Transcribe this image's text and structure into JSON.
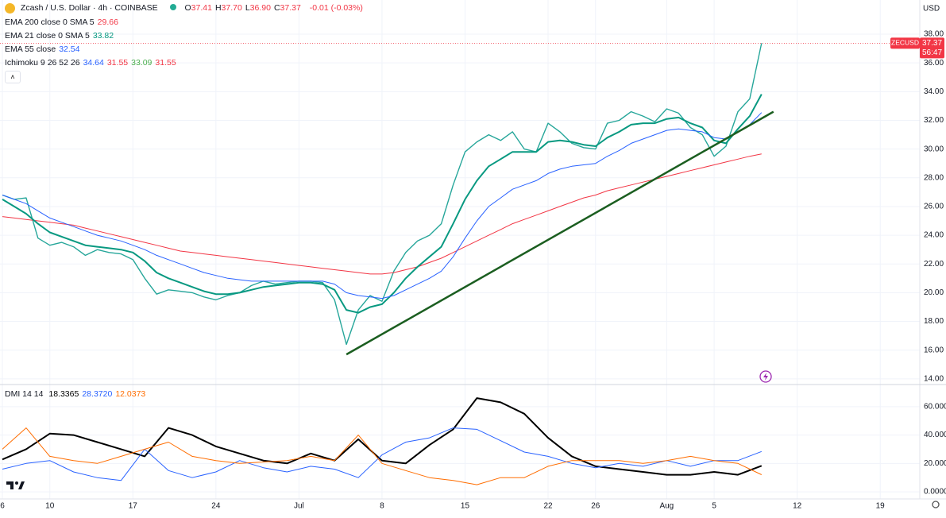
{
  "chart_data": [
    {
      "type": "line",
      "title": "Zcash / U.S. Dollar · 4h · COINBASE",
      "ohlc": [
        {
          "key": "O",
          "value": "37.41"
        },
        {
          "key": "H",
          "value": "37.70"
        },
        {
          "key": "L",
          "value": "36.90"
        },
        {
          "key": "C",
          "value": "37.37"
        }
      ],
      "change": "-0.01 (-0.03%)",
      "currency": "USD",
      "countdown": "56:47",
      "ichimoku": {
        "label": "Ichimoku 9 26 52 26",
        "values": [
          "34.64",
          "31.55",
          "33.09",
          "31.55"
        ],
        "colors": [
          "#2962ff",
          "#f23645",
          "#4caf50",
          "#f23645"
        ]
      },
      "xlim": [
        "06-06",
        "08-22"
      ],
      "xticks": [
        {
          "value": "06-06",
          "label": "6"
        },
        {
          "value": "06-10",
          "label": "10"
        },
        {
          "value": "06-17",
          "label": "17"
        },
        {
          "value": "06-24",
          "label": "24"
        },
        {
          "value": "07-01",
          "label": "Jul"
        },
        {
          "value": "07-08",
          "label": "8"
        },
        {
          "value": "07-15",
          "label": "15"
        },
        {
          "value": "07-22",
          "label": "22"
        },
        {
          "value": "07-26",
          "label": "26"
        },
        {
          "value": "08-01",
          "label": "Aug"
        },
        {
          "value": "08-05",
          "label": "5"
        },
        {
          "value": "08-12",
          "label": "12"
        },
        {
          "value": "08-19",
          "label": "19"
        }
      ],
      "ylim": [
        13.66,
        40.38
      ],
      "yticks": [
        {
          "value": 14,
          "label": "14.00"
        },
        {
          "value": 16,
          "label": "16.00"
        },
        {
          "value": 18,
          "label": "18.00"
        },
        {
          "value": 20,
          "label": "20.00"
        },
        {
          "value": 22,
          "label": "22.00"
        },
        {
          "value": 24,
          "label": "24.00"
        },
        {
          "value": 26,
          "label": "26.00"
        },
        {
          "value": 28,
          "label": "28.00"
        },
        {
          "value": 30,
          "label": "30.00"
        },
        {
          "value": 32,
          "label": "32.00"
        },
        {
          "value": 34,
          "label": "34.00"
        },
        {
          "value": 36,
          "label": "36.00"
        },
        {
          "value": 38,
          "label": "38.00"
        }
      ],
      "grid": true,
      "x": [
        "06-06",
        "06-07",
        "06-08",
        "06-09",
        "06-10",
        "06-11",
        "06-12",
        "06-13",
        "06-14",
        "06-15",
        "06-16",
        "06-17",
        "06-18",
        "06-19",
        "06-20",
        "06-21",
        "06-22",
        "06-23",
        "06-24",
        "06-25",
        "06-26",
        "06-27",
        "06-28",
        "06-29",
        "06-30",
        "07-01",
        "07-02",
        "07-03",
        "07-04",
        "07-05",
        "07-06",
        "07-07",
        "07-08",
        "07-09",
        "07-10",
        "07-11",
        "07-12",
        "07-13",
        "07-14",
        "07-15",
        "07-16",
        "07-17",
        "07-18",
        "07-19",
        "07-20",
        "07-21",
        "07-22",
        "07-23",
        "07-24",
        "07-25",
        "07-26",
        "07-27",
        "07-28",
        "07-29",
        "07-30",
        "07-31",
        "08-01",
        "08-02",
        "08-03",
        "08-04",
        "08-05",
        "08-06",
        "08-07",
        "08-08",
        "08-09"
      ],
      "series": [
        {
          "name": "ZECUSD",
          "color": "#26a69a",
          "width": 1.4,
          "values": [
            26.8,
            26.5,
            26.6,
            23.8,
            23.3,
            23.5,
            23.2,
            22.6,
            23.0,
            22.8,
            22.7,
            22.3,
            21.0,
            19.9,
            20.2,
            20.1,
            20.0,
            19.7,
            19.5,
            19.8,
            20.0,
            20.5,
            20.8,
            20.6,
            20.7,
            20.8,
            20.8,
            20.7,
            19.5,
            16.4,
            18.8,
            19.8,
            19.4,
            21.5,
            22.8,
            23.6,
            24.0,
            24.8,
            27.5,
            29.8,
            30.5,
            31.0,
            30.6,
            31.2,
            30.0,
            29.8,
            31.8,
            31.2,
            30.4,
            30.1,
            30.0,
            31.8,
            32.0,
            32.6,
            32.3,
            31.9,
            32.8,
            32.5,
            31.5,
            31.0,
            29.5,
            30.2,
            32.6,
            33.5,
            37.37
          ]
        },
        {
          "name": "EMA 200 close 0 SMA 5",
          "legend_value": "29.66",
          "color": "#f23645",
          "width": 1,
          "values": [
            25.3,
            25.2,
            25.1,
            25.0,
            24.9,
            24.8,
            24.7,
            24.5,
            24.3,
            24.1,
            23.9,
            23.7,
            23.5,
            23.3,
            23.1,
            22.9,
            22.8,
            22.7,
            22.6,
            22.5,
            22.4,
            22.3,
            22.2,
            22.1,
            22.0,
            21.9,
            21.8,
            21.7,
            21.6,
            21.5,
            21.4,
            21.3,
            21.3,
            21.4,
            21.6,
            21.8,
            22.1,
            22.4,
            22.8,
            23.2,
            23.6,
            24.0,
            24.4,
            24.8,
            25.1,
            25.4,
            25.7,
            26.0,
            26.3,
            26.6,
            26.8,
            27.1,
            27.3,
            27.5,
            27.7,
            27.9,
            28.1,
            28.3,
            28.5,
            28.7,
            28.9,
            29.1,
            29.3,
            29.5,
            29.66
          ]
        },
        {
          "name": "EMA 21 close 0 SMA 5",
          "legend_value": "33.82",
          "color": "#089981",
          "width": 2,
          "values": [
            26.5,
            26.0,
            25.5,
            24.8,
            24.2,
            23.9,
            23.6,
            23.3,
            23.2,
            23.1,
            23.0,
            22.8,
            22.2,
            21.4,
            21.0,
            20.7,
            20.4,
            20.1,
            19.9,
            19.9,
            20.0,
            20.2,
            20.4,
            20.5,
            20.6,
            20.7,
            20.7,
            20.6,
            20.2,
            18.8,
            18.6,
            19.0,
            19.2,
            20.0,
            21.0,
            21.8,
            22.5,
            23.2,
            24.8,
            26.5,
            27.8,
            28.8,
            29.3,
            29.8,
            29.8,
            29.8,
            30.5,
            30.6,
            30.5,
            30.3,
            30.2,
            30.8,
            31.2,
            31.7,
            31.8,
            31.8,
            32.1,
            32.2,
            31.8,
            31.5,
            30.6,
            30.4,
            31.4,
            32.3,
            33.82
          ]
        },
        {
          "name": "EMA 55 close",
          "legend_value": "32.54",
          "color": "#2962ff",
          "width": 1,
          "values": [
            26.8,
            26.5,
            26.2,
            25.7,
            25.2,
            24.9,
            24.6,
            24.3,
            24.0,
            23.8,
            23.6,
            23.3,
            23.0,
            22.6,
            22.3,
            22.0,
            21.7,
            21.4,
            21.2,
            21.0,
            20.9,
            20.8,
            20.8,
            20.8,
            20.8,
            20.8,
            20.8,
            20.8,
            20.6,
            20.0,
            19.8,
            19.7,
            19.6,
            19.8,
            20.2,
            20.6,
            21.0,
            21.5,
            22.5,
            23.8,
            25.0,
            26.0,
            26.6,
            27.2,
            27.5,
            27.8,
            28.3,
            28.6,
            28.8,
            28.9,
            29.0,
            29.5,
            29.9,
            30.4,
            30.7,
            31.0,
            31.3,
            31.4,
            31.3,
            31.2,
            30.8,
            30.7,
            31.2,
            31.7,
            32.54
          ]
        }
      ],
      "trendline": {
        "color": "#1b5e20",
        "x": [
          "07-05",
          "08-10"
        ],
        "values": [
          15.7,
          32.6
        ]
      }
    },
    {
      "type": "line",
      "title": "DMI 14 14",
      "ylim": [
        -5,
        75
      ],
      "yticks": [
        {
          "value": 0,
          "label": "0.0000"
        },
        {
          "value": 20,
          "label": "20.0000"
        },
        {
          "value": 40,
          "label": "40.0000"
        },
        {
          "value": 60,
          "label": "60.0000"
        }
      ],
      "x": [
        "06-06",
        "06-08",
        "06-10",
        "06-12",
        "06-14",
        "06-16",
        "06-18",
        "06-20",
        "06-22",
        "06-24",
        "06-26",
        "06-28",
        "06-30",
        "07-02",
        "07-04",
        "07-06",
        "07-08",
        "07-10",
        "07-12",
        "07-14",
        "07-16",
        "07-18",
        "07-20",
        "07-22",
        "07-24",
        "07-26",
        "07-28",
        "07-30",
        "08-01",
        "08-03",
        "08-05",
        "08-07",
        "08-09"
      ],
      "series": [
        {
          "legend_value": "18.3365",
          "color": "#000000",
          "width": 2,
          "values": [
            22.8,
            30,
            41,
            40,
            35,
            30,
            25,
            45,
            40,
            32,
            27,
            22,
            20,
            27,
            22,
            37,
            22,
            20,
            33,
            44,
            66,
            63,
            55,
            38,
            25,
            18,
            16,
            14,
            12,
            12,
            14,
            12,
            18.3365
          ]
        },
        {
          "legend_value": "28.3720",
          "color": "#2962ff",
          "width": 1,
          "values": [
            16,
            20,
            22,
            14,
            10,
            8,
            30,
            15,
            10,
            14,
            22,
            17,
            14,
            18,
            16,
            10,
            26,
            35,
            38,
            45,
            44,
            36,
            28,
            25,
            20,
            17,
            20,
            18,
            22,
            18,
            22,
            22,
            28.372
          ]
        },
        {
          "legend_value": "12.0373",
          "color": "#ff6d00",
          "width": 1,
          "values": [
            30,
            45,
            25,
            22,
            20,
            25,
            30,
            35,
            25,
            22,
            20,
            21,
            22,
            25,
            22,
            40,
            20,
            15,
            10,
            8,
            5,
            10,
            10,
            18,
            22,
            22,
            22,
            20,
            22,
            25,
            22,
            20,
            12.0373
          ]
        }
      ]
    }
  ]
}
